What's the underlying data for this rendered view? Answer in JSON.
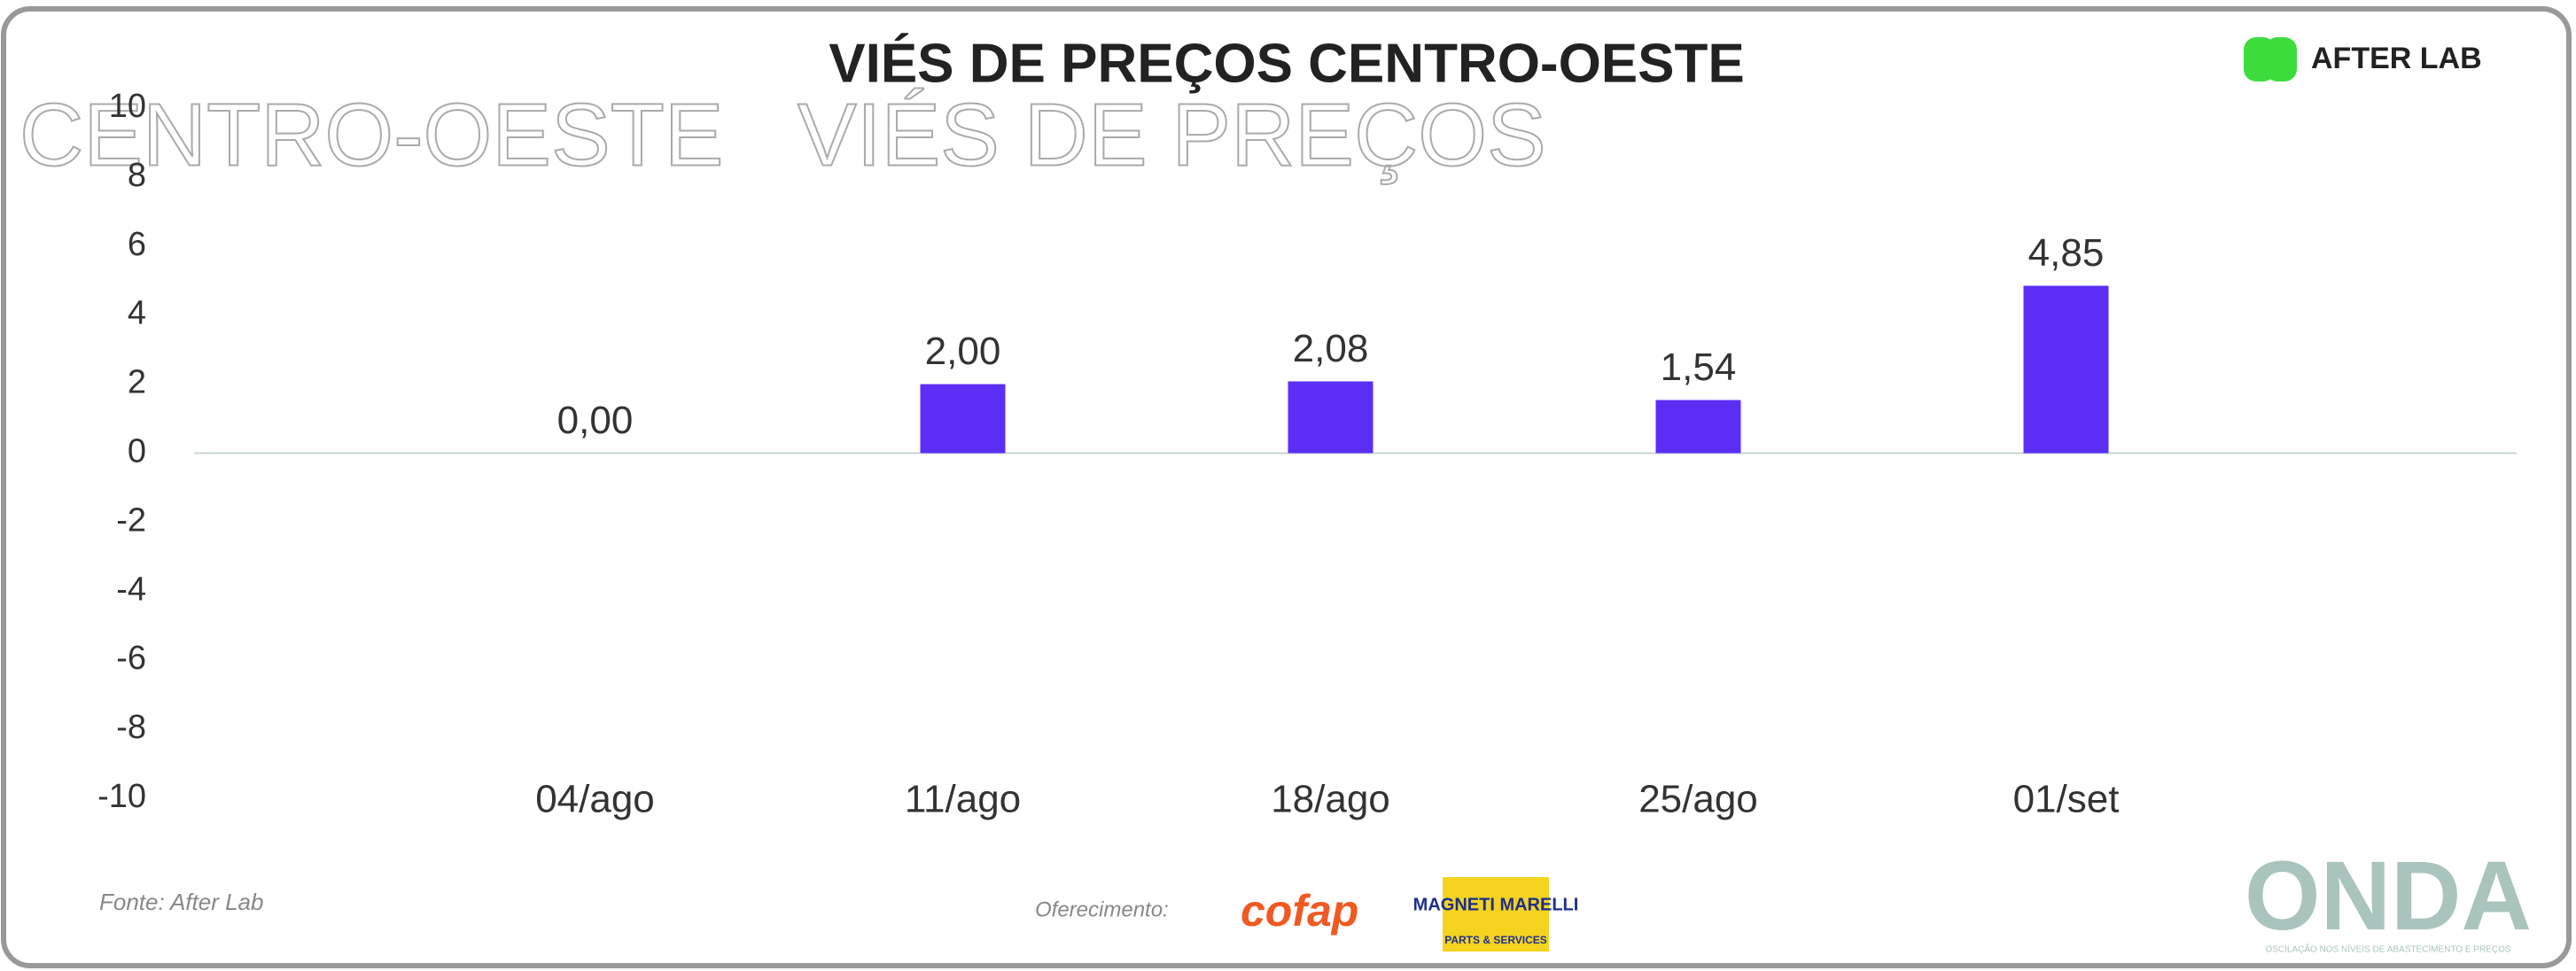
{
  "chart_data": {
    "type": "bar",
    "title": "VIÉS DE PREÇOS CENTRO-OESTE",
    "overlay_texts": [
      "CENTRO-OESTE",
      "VIÉS DE PREÇOS"
    ],
    "categories": [
      "04/ago",
      "11/ago",
      "18/ago",
      "25/ago",
      "01/set"
    ],
    "values": [
      0,
      2.0,
      2.08,
      1.54,
      4.85
    ],
    "value_labels": [
      "0,00",
      "2,00",
      "2,08",
      "1,54",
      "4,85"
    ],
    "color": "#5b2ef5",
    "ylim": [
      -10,
      10
    ],
    "yticks": [
      -10,
      -8,
      -6,
      -4,
      -2,
      0,
      2,
      4,
      6,
      8,
      10
    ],
    "grid": false
  },
  "footer": {
    "source": "Fonte: After Lab",
    "sponsor": "Oferecimento:",
    "logos": {
      "afterlab": "AFTER LAB",
      "cofap": "cofap",
      "magneti_marelli": "MAGNETI MARELLI",
      "magneti_sub": "PARTS & SERVICES",
      "onda": "ONDA",
      "onda_tagline": "OSCILAÇÃO NOS NÍVEIS DE ABASTECIMENTO E PREÇOS"
    }
  }
}
